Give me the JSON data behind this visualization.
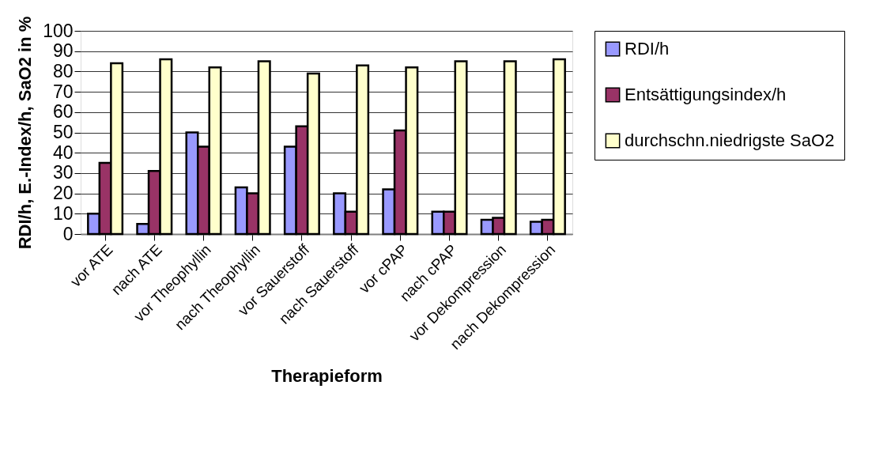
{
  "chart_data": {
    "type": "bar",
    "xlabel": "Therapieform",
    "ylabel": "RDI/h, E.-Index/h, SaO2 in %",
    "categories": [
      "vor ATE",
      "nach ATE",
      "vor Theophyllin",
      "nach Theophyllin",
      "vor Sauerstoff",
      "nach Sauerstoff",
      "vor cPAP",
      "nach cPAP",
      "vor Dekompression",
      "nach Dekompression"
    ],
    "series": [
      {
        "name": "RDI/h",
        "color": "#9999ff",
        "values": [
          10,
          5,
          50,
          23,
          43,
          20,
          22,
          11,
          7,
          6
        ]
      },
      {
        "name": "Entsättigungsindex/h",
        "color": "#993366",
        "values": [
          35,
          31,
          43,
          20,
          53,
          11,
          51,
          11,
          8,
          7
        ]
      },
      {
        "name": "durchschn.niedrigste SaO2",
        "color": "#ffffcc",
        "values": [
          84,
          86,
          82,
          85,
          79,
          83,
          82,
          85,
          85,
          86
        ]
      }
    ],
    "ylim": [
      0,
      100
    ],
    "yticks": [
      0,
      10,
      20,
      30,
      40,
      50,
      60,
      70,
      80,
      90,
      100
    ],
    "grid": "y",
    "legend": "right"
  }
}
